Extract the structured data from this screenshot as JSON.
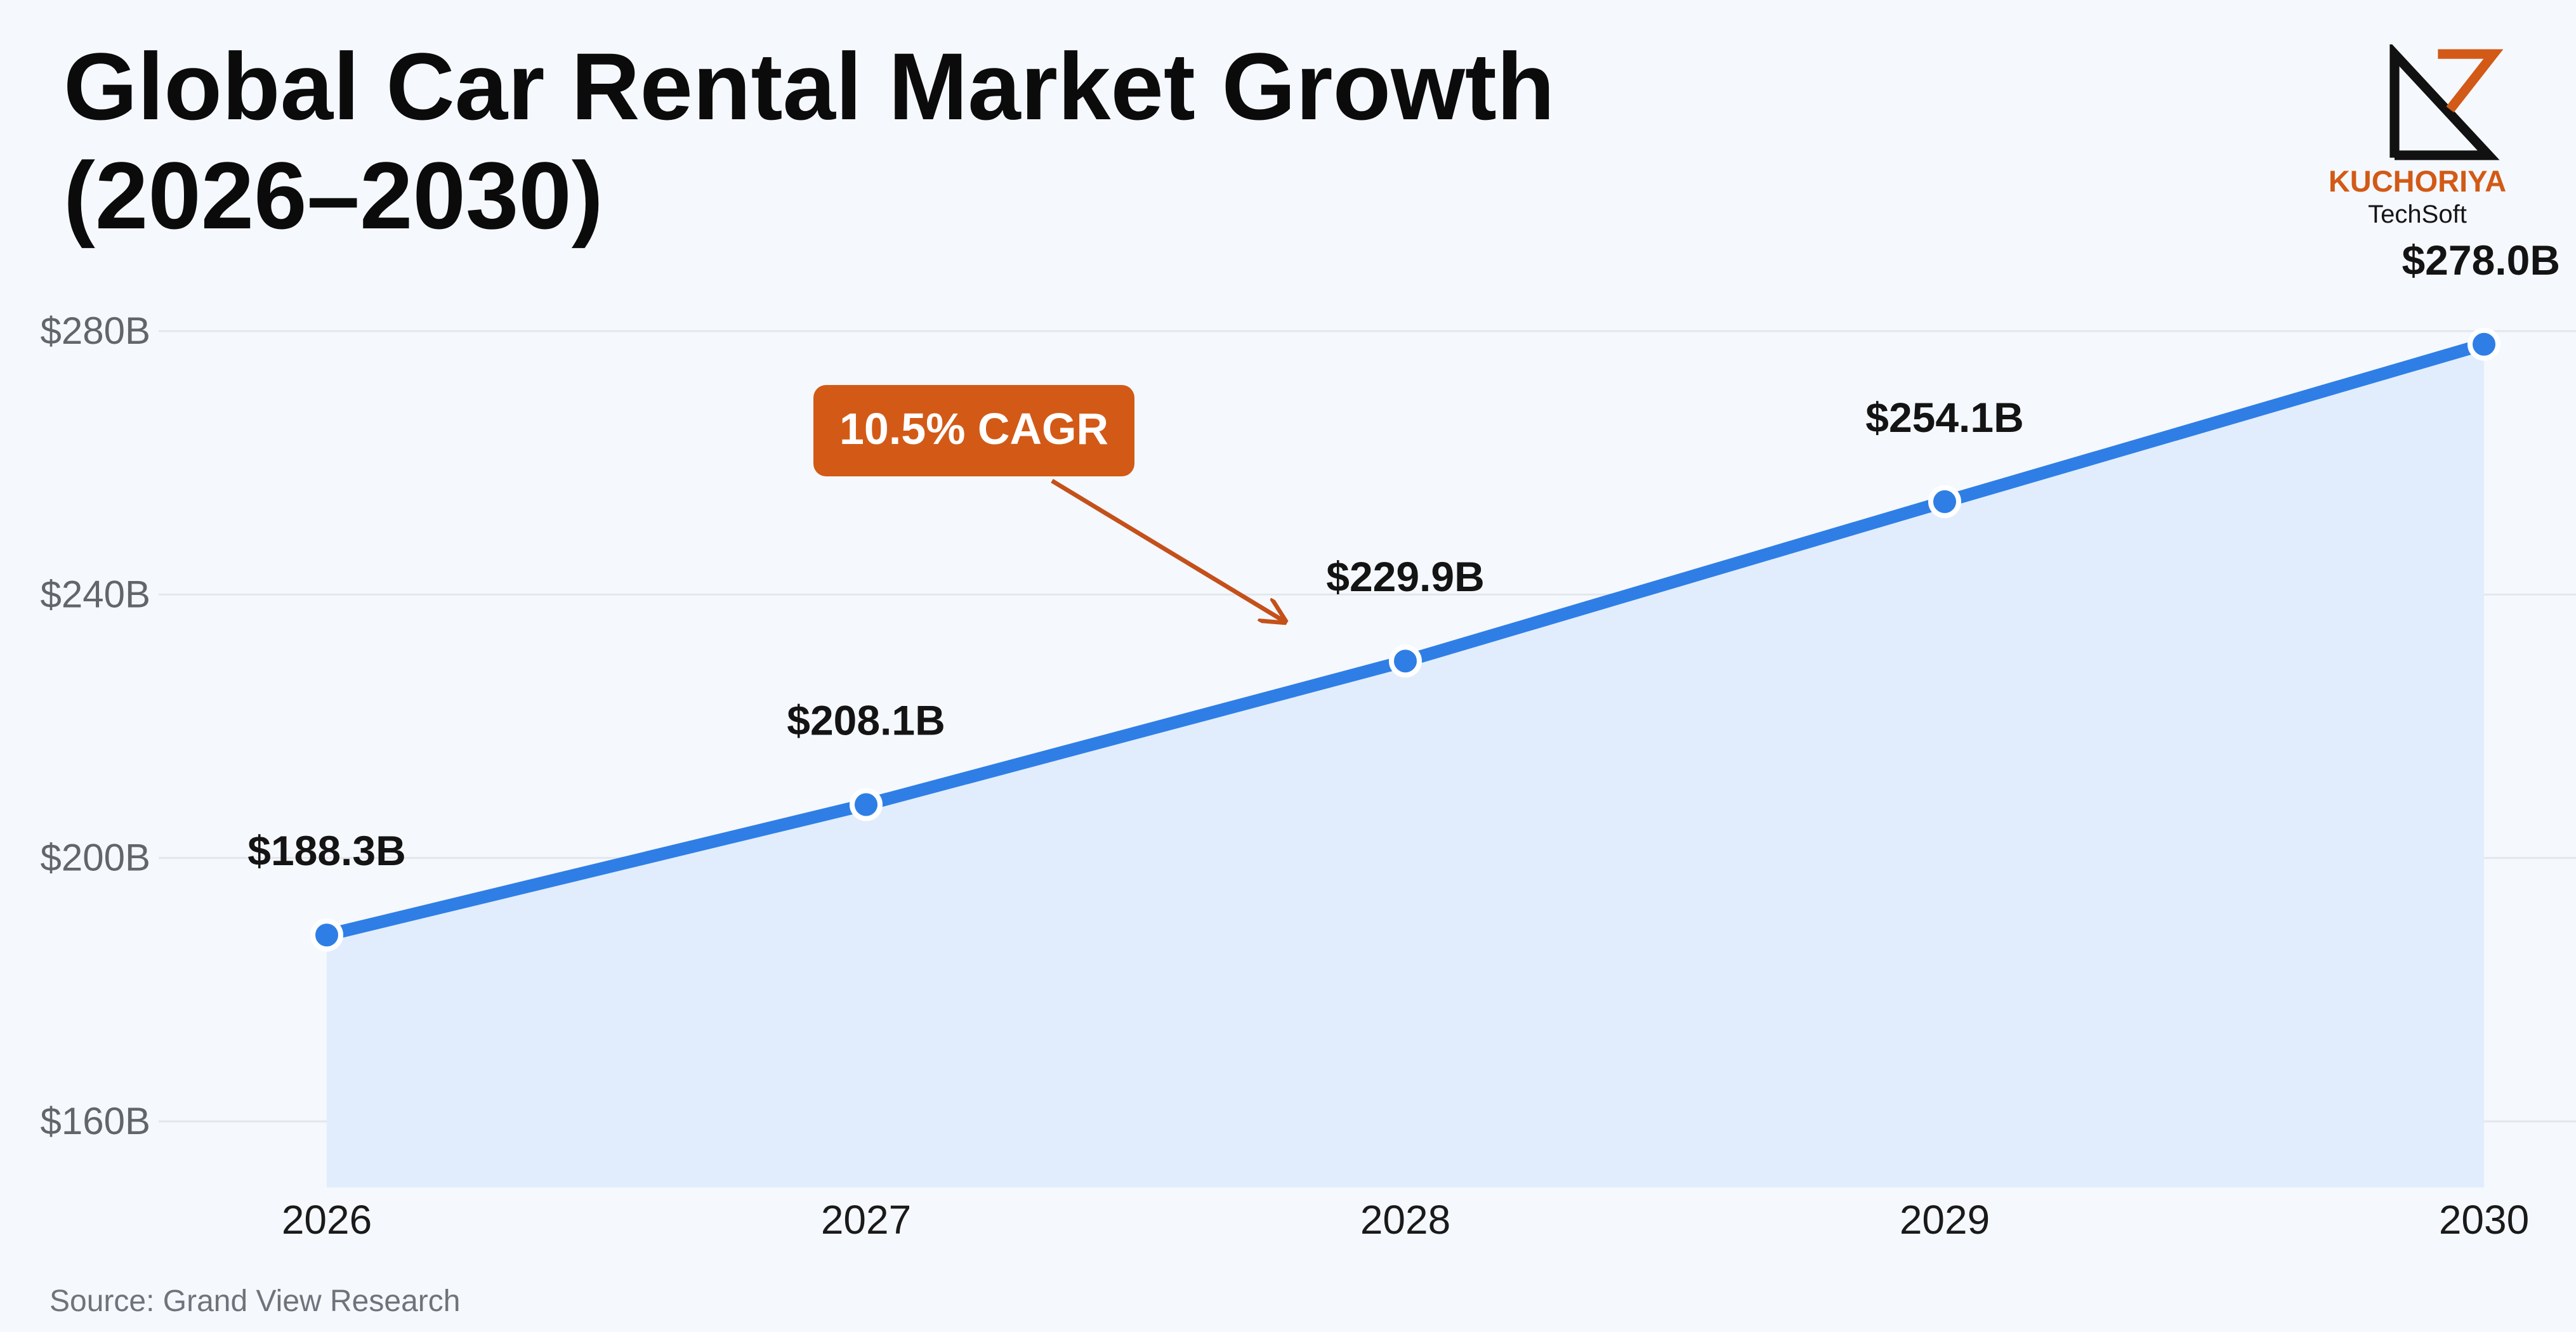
{
  "header": {
    "title_line1": "Global Car Rental Market Growth",
    "title_line2": "(2026–2030)"
  },
  "logo": {
    "name": "KUCHORIYA",
    "sub": "TechSoft",
    "icon": "kuchoriya-techsoft-logo-icon"
  },
  "footer": {
    "source": "Source: Grand View Research"
  },
  "colors": {
    "line": "#2f7ee6",
    "area": "#e1edfc",
    "accent": "#d25a16",
    "background": "#f5f8fd"
  },
  "chart_data": {
    "type": "area",
    "x": [
      "2026",
      "2027",
      "2028",
      "2029",
      "2030"
    ],
    "series": [
      {
        "values": [
          188.3,
          208.1,
          229.9,
          254.1,
          278.0
        ],
        "data_labels": [
          "$188.3B",
          "$208.1B",
          "$229.9B",
          "$254.1B",
          "$278.0B"
        ]
      }
    ],
    "y_ticks": [
      160,
      200,
      240,
      280
    ],
    "y_tick_labels": [
      "$160B",
      "$200B",
      "$240B",
      "$280B"
    ],
    "ylim": [
      150,
      280
    ],
    "grid": true,
    "annotation": {
      "text": "10.5% CAGR",
      "points_to": "between 2027 and 2028"
    }
  }
}
